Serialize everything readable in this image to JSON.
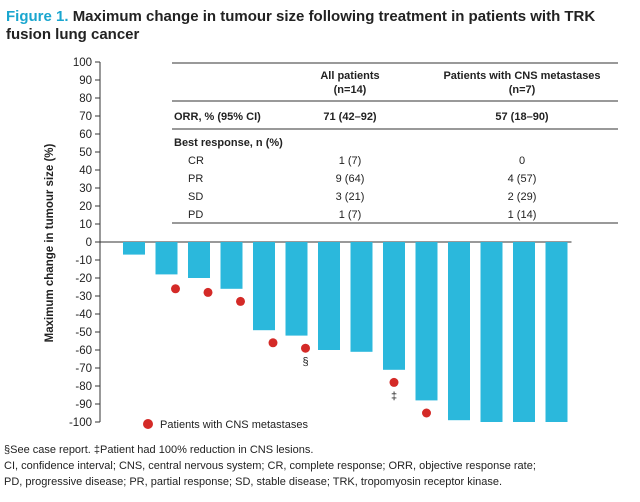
{
  "title_prefix": "Figure 1.",
  "title_rest": "Maximum change in tumour size following treatment in patients with TRK fusion lung cancer",
  "colors": {
    "bar": "#2bb8dc",
    "cns_dot": "#d42a27",
    "title_accent": "#1aa6cf"
  },
  "chart_data": {
    "type": "bar",
    "subtype": "waterfall",
    "ylabel": "Maximum change in tumour size (%)",
    "ylim": [
      -100,
      100
    ],
    "yticks": [
      100,
      90,
      80,
      70,
      60,
      50,
      40,
      30,
      20,
      10,
      0,
      -10,
      -20,
      -30,
      -40,
      -50,
      -60,
      -70,
      -80,
      -90,
      -100
    ],
    "values": [
      -7,
      -18,
      -20,
      -26,
      -49,
      -52,
      -60,
      -61,
      -71,
      -88,
      -99,
      -100,
      -100,
      -100
    ],
    "cns_metastases": [
      false,
      true,
      true,
      true,
      true,
      true,
      false,
      false,
      true,
      true,
      false,
      false,
      false,
      false
    ],
    "cns_dot_values": [
      null,
      -26,
      -28,
      -33,
      -56,
      -59,
      null,
      null,
      -78,
      -95,
      null,
      null,
      null,
      null
    ],
    "bar_marks": [
      null,
      null,
      null,
      null,
      null,
      "§",
      null,
      null,
      "‡",
      null,
      null,
      null,
      null,
      null
    ],
    "legend": {
      "label": "Patients with CNS metastases",
      "placement": "bottom-left"
    }
  },
  "table": {
    "col_headers": [
      [
        "All patients",
        "(n=14)"
      ],
      [
        "Patients with CNS metastases",
        "(n=7)"
      ]
    ],
    "orr_label": "ORR, % (95% CI)",
    "orr_values": [
      "71 (42–92)",
      "57 (18–90)"
    ],
    "best_response_label": "Best response, n (%)",
    "rows": [
      {
        "label": "CR",
        "all": "1 (7)",
        "cns": "0"
      },
      {
        "label": "PR",
        "all": "9 (64)",
        "cns": "4 (57)"
      },
      {
        "label": "SD",
        "all": "3 (21)",
        "cns": "2 (29)"
      },
      {
        "label": "PD",
        "all": "1 (7)",
        "cns": "1 (14)"
      }
    ]
  },
  "footnotes": [
    "§See case report. ‡Patient had 100% reduction in CNS lesions.",
    "CI, confidence interval; CNS, central nervous system; CR, complete response; ORR, objective response rate;",
    "PD, progressive disease; PR, partial response; SD, stable disease; TRK, tropomyosin receptor kinase."
  ]
}
